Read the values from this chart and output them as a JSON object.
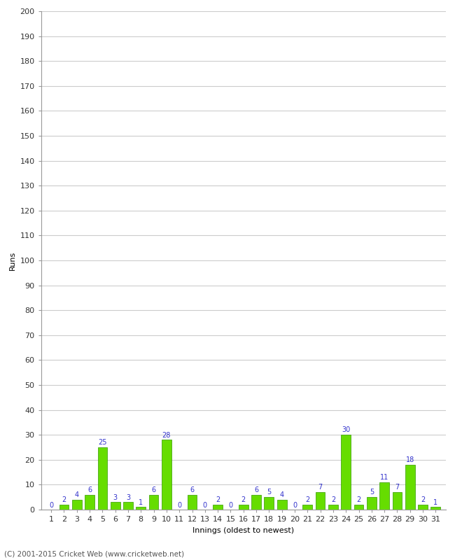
{
  "innings": [
    1,
    2,
    3,
    4,
    5,
    6,
    7,
    8,
    9,
    10,
    11,
    12,
    13,
    14,
    15,
    16,
    17,
    18,
    19,
    20,
    21,
    22,
    23,
    24,
    25,
    26,
    27,
    28,
    29,
    30,
    31
  ],
  "runs": [
    0,
    2,
    4,
    6,
    25,
    3,
    3,
    1,
    6,
    28,
    0,
    6,
    0,
    2,
    0,
    2,
    6,
    5,
    4,
    0,
    2,
    7,
    2,
    30,
    2,
    5,
    11,
    7,
    18,
    2,
    1
  ],
  "bar_color": "#66dd00",
  "bar_edge_color": "#339900",
  "label_color": "#3333cc",
  "xlabel": "Innings (oldest to newest)",
  "ylabel": "Runs",
  "ylim": [
    0,
    200
  ],
  "yticks": [
    0,
    10,
    20,
    30,
    40,
    50,
    60,
    70,
    80,
    90,
    100,
    110,
    120,
    130,
    140,
    150,
    160,
    170,
    180,
    190,
    200
  ],
  "background_color": "#ffffff",
  "grid_color": "#cccccc",
  "footer": "(C) 2001-2015 Cricket Web (www.cricketweb.net)",
  "label_fontsize": 7,
  "axis_label_fontsize": 8,
  "tick_fontsize": 8
}
